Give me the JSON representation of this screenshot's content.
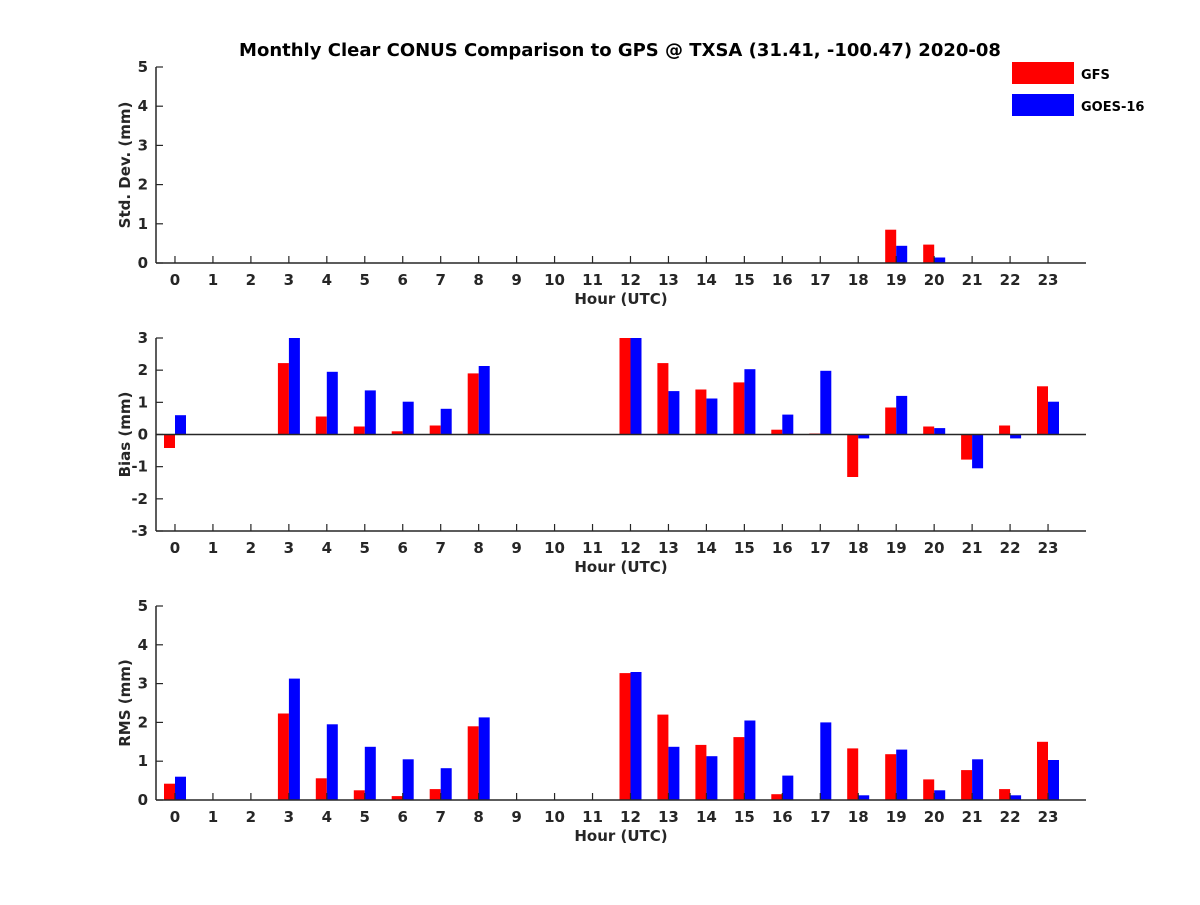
{
  "title": "Monthly Clear CONUS Comparison to GPS @ TXSA (31.41, -100.47) 2020-08",
  "legend": {
    "position": "top-right",
    "items": [
      {
        "label": "GFS",
        "color": "#ff0000"
      },
      {
        "label": "GOES-16",
        "color": "#0000ff"
      }
    ]
  },
  "chart_data": [
    {
      "type": "bar",
      "xlabel": "Hour (UTC)",
      "ylabel": "Std. Dev. (mm)",
      "ylim": [
        0,
        5
      ],
      "yticks": [
        0,
        1,
        2,
        3,
        4,
        5
      ],
      "categories": [
        "0",
        "1",
        "2",
        "3",
        "4",
        "5",
        "6",
        "7",
        "8",
        "9",
        "10",
        "11",
        "12",
        "13",
        "14",
        "15",
        "16",
        "17",
        "18",
        "19",
        "20",
        "21",
        "22",
        "23"
      ],
      "series": [
        {
          "name": "GFS",
          "color": "#ff0000",
          "values": [
            0,
            0,
            0,
            0,
            0,
            0,
            0,
            0,
            0,
            0,
            0,
            0,
            0,
            0,
            0,
            0,
            0,
            0,
            0,
            0.85,
            0.47,
            0,
            0,
            0
          ]
        },
        {
          "name": "GOES-16",
          "color": "#0000ff",
          "values": [
            0,
            0,
            0,
            0,
            0,
            0,
            0,
            0,
            0,
            0,
            0,
            0,
            0,
            0,
            0,
            0,
            0,
            0,
            0,
            0.44,
            0.14,
            0,
            0,
            0
          ]
        }
      ]
    },
    {
      "type": "bar",
      "xlabel": "Hour (UTC)",
      "ylabel": "Bias (mm)",
      "ylim": [
        -3,
        3
      ],
      "yticks": [
        -3,
        -2,
        -1,
        0,
        1,
        2,
        3
      ],
      "categories": [
        "0",
        "1",
        "2",
        "3",
        "4",
        "5",
        "6",
        "7",
        "8",
        "9",
        "10",
        "11",
        "12",
        "13",
        "14",
        "15",
        "16",
        "17",
        "18",
        "19",
        "20",
        "21",
        "22",
        "23"
      ],
      "series": [
        {
          "name": "GFS",
          "color": "#ff0000",
          "values": [
            -0.42,
            0,
            0,
            2.22,
            0.56,
            0.25,
            0.1,
            0.28,
            1.9,
            0,
            0,
            0,
            3.0,
            2.22,
            1.4,
            1.62,
            0.15,
            0.03,
            -1.32,
            0.84,
            0.25,
            -0.78,
            0.28,
            1.5
          ]
        },
        {
          "name": "GOES-16",
          "color": "#0000ff",
          "values": [
            0.6,
            0,
            0,
            3.0,
            1.95,
            1.37,
            1.02,
            0.8,
            2.13,
            0,
            0,
            0,
            3.0,
            1.35,
            1.12,
            2.03,
            0.62,
            1.98,
            -0.12,
            1.2,
            0.2,
            -1.05,
            -0.12,
            1.02
          ]
        }
      ]
    },
    {
      "type": "bar",
      "xlabel": "Hour (UTC)",
      "ylabel": "RMS (mm)",
      "ylim": [
        0,
        5
      ],
      "yticks": [
        0,
        1,
        2,
        3,
        4,
        5
      ],
      "categories": [
        "0",
        "1",
        "2",
        "3",
        "4",
        "5",
        "6",
        "7",
        "8",
        "9",
        "10",
        "11",
        "12",
        "13",
        "14",
        "15",
        "16",
        "17",
        "18",
        "19",
        "20",
        "21",
        "22",
        "23"
      ],
      "series": [
        {
          "name": "GFS",
          "color": "#ff0000",
          "values": [
            0.42,
            0,
            0,
            2.23,
            0.56,
            0.25,
            0.1,
            0.28,
            1.9,
            0,
            0,
            0,
            3.27,
            2.2,
            1.42,
            1.62,
            0.15,
            0,
            1.33,
            1.18,
            0.53,
            0.77,
            0.28,
            1.5
          ]
        },
        {
          "name": "GOES-16",
          "color": "#0000ff",
          "values": [
            0.6,
            0,
            0,
            3.13,
            1.95,
            1.37,
            1.05,
            0.82,
            2.13,
            0,
            0,
            0,
            3.3,
            1.37,
            1.13,
            2.05,
            0.63,
            2.0,
            0.12,
            1.3,
            0.25,
            1.05,
            0.12,
            1.03
          ]
        }
      ]
    }
  ]
}
